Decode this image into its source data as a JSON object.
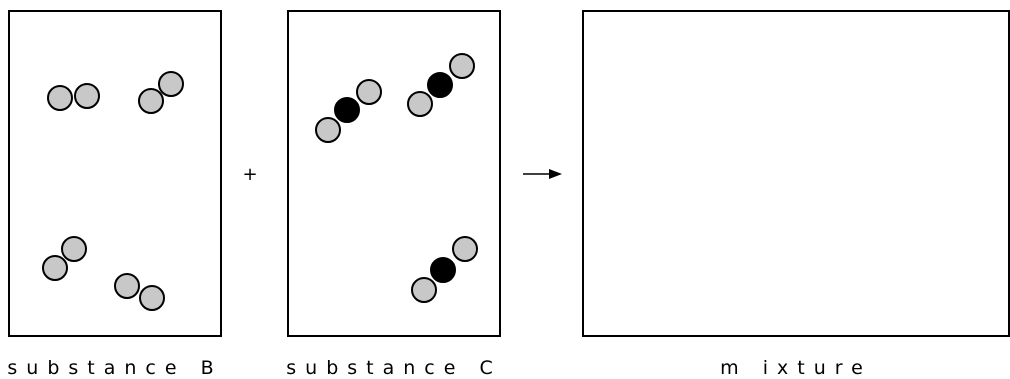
{
  "colors": {
    "outline": "#000000",
    "gray_atom": "#c8c8c8",
    "black_atom": "#000000",
    "background": "#ffffff"
  },
  "operators": {
    "plus": "+",
    "arrow": "→"
  },
  "panels": [
    {
      "label": "substance B",
      "molecules": [
        {
          "atoms": [
            "gray",
            "gray"
          ]
        },
        {
          "atoms": [
            "gray",
            "gray"
          ]
        },
        {
          "atoms": [
            "gray",
            "gray"
          ]
        },
        {
          "atoms": [
            "gray",
            "gray"
          ]
        }
      ]
    },
    {
      "label": "substance C",
      "molecules": [
        {
          "atoms": [
            "gray",
            "black",
            "gray"
          ]
        },
        {
          "atoms": [
            "gray",
            "black",
            "gray"
          ]
        },
        {
          "atoms": [
            "gray",
            "black",
            "gray"
          ]
        }
      ]
    },
    {
      "label": "m ixture",
      "molecules": []
    }
  ]
}
